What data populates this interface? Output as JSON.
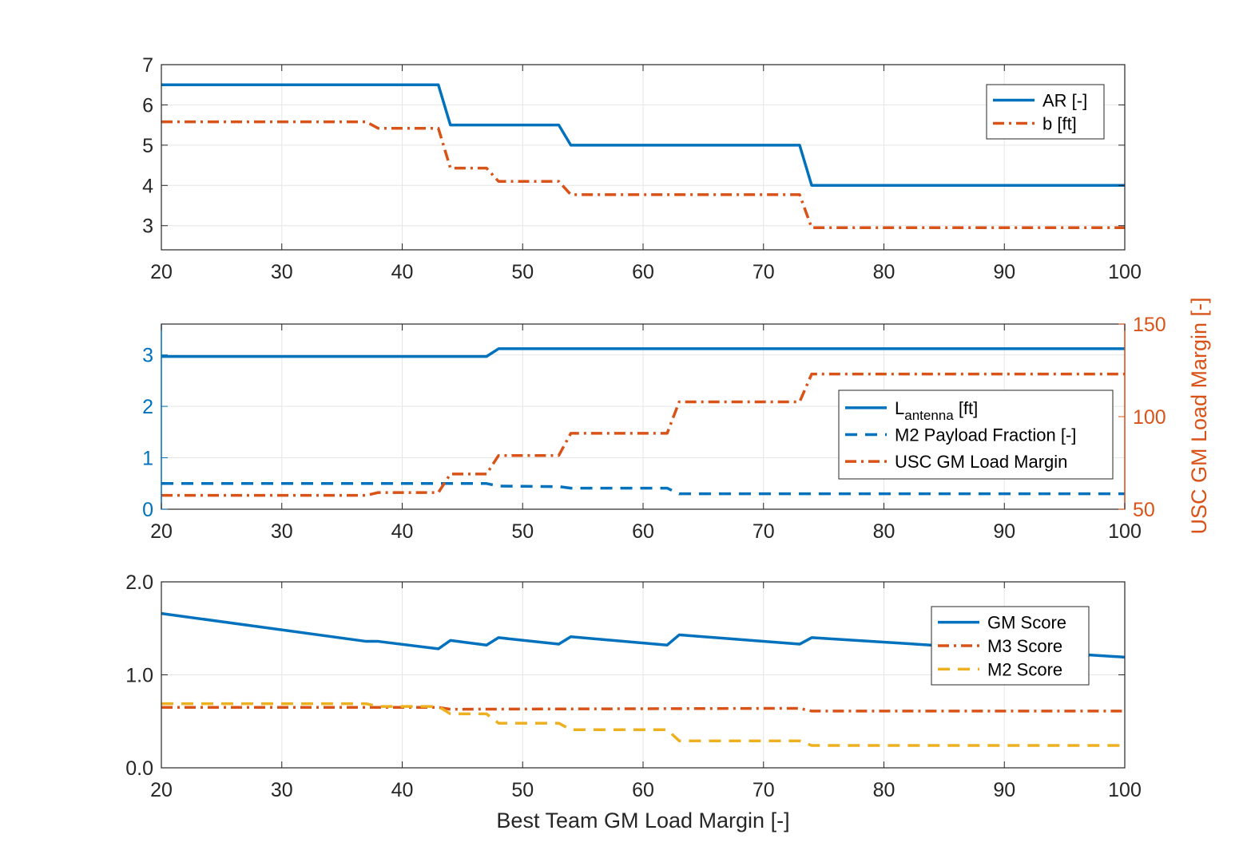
{
  "colors": {
    "blue": "#0072BD",
    "orange": "#D95319",
    "yellow": "#EDB120",
    "grid": "#e6e6e6",
    "axis": "#262626"
  },
  "chart_data": [
    {
      "type": "line",
      "xlim": [
        20,
        100
      ],
      "ylim": [
        2.4,
        7
      ],
      "xticks": [
        20,
        30,
        40,
        50,
        60,
        70,
        80,
        90,
        100
      ],
      "yticks": [
        3,
        4,
        5,
        6,
        7
      ],
      "grid": true,
      "legend_position": "top-right",
      "series": [
        {
          "name": "AR [-]",
          "color": "#0072BD",
          "style": "solid",
          "points": [
            [
              20,
              6.5
            ],
            [
              43,
              6.5
            ],
            [
              44,
              5.5
            ],
            [
              53,
              5.5
            ],
            [
              54,
              5.0
            ],
            [
              73,
              5.0
            ],
            [
              74,
              4.0
            ],
            [
              100,
              4.0
            ]
          ]
        },
        {
          "name": "b [ft]",
          "color": "#D95319",
          "style": "dashdot",
          "points": [
            [
              20,
              5.58
            ],
            [
              37,
              5.58
            ],
            [
              38,
              5.42
            ],
            [
              43,
              5.42
            ],
            [
              44,
              4.43
            ],
            [
              47,
              4.43
            ],
            [
              48,
              4.1
            ],
            [
              53,
              4.1
            ],
            [
              54,
              3.77
            ],
            [
              73,
              3.77
            ],
            [
              74,
              2.95
            ],
            [
              100,
              2.95
            ]
          ]
        }
      ]
    },
    {
      "type": "line",
      "xlim": [
        20,
        100
      ],
      "ylim": [
        0,
        3.6
      ],
      "xticks": [
        20,
        30,
        40,
        50,
        60,
        70,
        80,
        90,
        100
      ],
      "yticks": [
        0,
        1,
        2,
        3
      ],
      "y2lim": [
        50,
        150
      ],
      "y2ticks": [
        50,
        100,
        150
      ],
      "y2label": "USC GM Load Margin [-]",
      "grid": true,
      "legend_position": "center-right",
      "series": [
        {
          "name_main": "L",
          "name_sub": "antenna",
          "name_suffix": " [ft]",
          "color": "#0072BD",
          "style": "solid",
          "axis": "left",
          "points": [
            [
              20,
              2.97
            ],
            [
              47,
              2.97
            ],
            [
              48,
              3.12
            ],
            [
              100,
              3.12
            ]
          ]
        },
        {
          "name": "M2 Payload Fraction [-]",
          "color": "#0072BD",
          "style": "dashed",
          "axis": "left",
          "points": [
            [
              20,
              0.5
            ],
            [
              47,
              0.5
            ],
            [
              48,
              0.45
            ],
            [
              53,
              0.44
            ],
            [
              54,
              0.41
            ],
            [
              62,
              0.41
            ],
            [
              63,
              0.3
            ],
            [
              100,
              0.3
            ]
          ]
        },
        {
          "name": "USC GM Load Margin",
          "color": "#D95319",
          "style": "dashdot",
          "axis": "right",
          "points": [
            [
              20,
              57.5
            ],
            [
              37,
              57.5
            ],
            [
              38,
              59
            ],
            [
              43,
              59
            ],
            [
              44,
              69
            ],
            [
              47,
              69
            ],
            [
              48,
              79
            ],
            [
              53,
              79
            ],
            [
              54,
              91
            ],
            [
              62,
              91
            ],
            [
              63,
              108
            ],
            [
              73,
              108
            ],
            [
              74,
              123
            ],
            [
              100,
              123
            ]
          ]
        }
      ]
    },
    {
      "type": "line",
      "xlim": [
        20,
        100
      ],
      "ylim": [
        0,
        2
      ],
      "xticks": [
        20,
        30,
        40,
        50,
        60,
        70,
        80,
        90,
        100
      ],
      "yticks": [
        0,
        1,
        2
      ],
      "ytick_labels": [
        "0.0",
        "1.0",
        "2.0"
      ],
      "xlabel": "Best Team GM Load Margin [-]",
      "grid": true,
      "legend_position": "top-right",
      "series": [
        {
          "name": "GM Score",
          "color": "#0072BD",
          "style": "solid",
          "points": [
            [
              20,
              1.66
            ],
            [
              37,
              1.36
            ],
            [
              38,
              1.36
            ],
            [
              43,
              1.28
            ],
            [
              44,
              1.37
            ],
            [
              47,
              1.32
            ],
            [
              48,
              1.4
            ],
            [
              53,
              1.33
            ],
            [
              54,
              1.41
            ],
            [
              62,
              1.32
            ],
            [
              63,
              1.43
            ],
            [
              73,
              1.33
            ],
            [
              74,
              1.4
            ],
            [
              100,
              1.19
            ]
          ]
        },
        {
          "name": "M3 Score",
          "color": "#D95319",
          "style": "dashdot",
          "points": [
            [
              20,
              0.65
            ],
            [
              43,
              0.65
            ],
            [
              44,
              0.63
            ],
            [
              73,
              0.64
            ],
            [
              74,
              0.61
            ],
            [
              100,
              0.61
            ]
          ]
        },
        {
          "name": "M2 Score",
          "color": "#EDB120",
          "style": "dashed",
          "points": [
            [
              20,
              0.69
            ],
            [
              37,
              0.69
            ],
            [
              38,
              0.66
            ],
            [
              43,
              0.66
            ],
            [
              44,
              0.58
            ],
            [
              47,
              0.58
            ],
            [
              48,
              0.48
            ],
            [
              53,
              0.48
            ],
            [
              54,
              0.41
            ],
            [
              62,
              0.41
            ],
            [
              63,
              0.29
            ],
            [
              73,
              0.29
            ],
            [
              74,
              0.24
            ],
            [
              100,
              0.24
            ]
          ]
        }
      ]
    }
  ]
}
